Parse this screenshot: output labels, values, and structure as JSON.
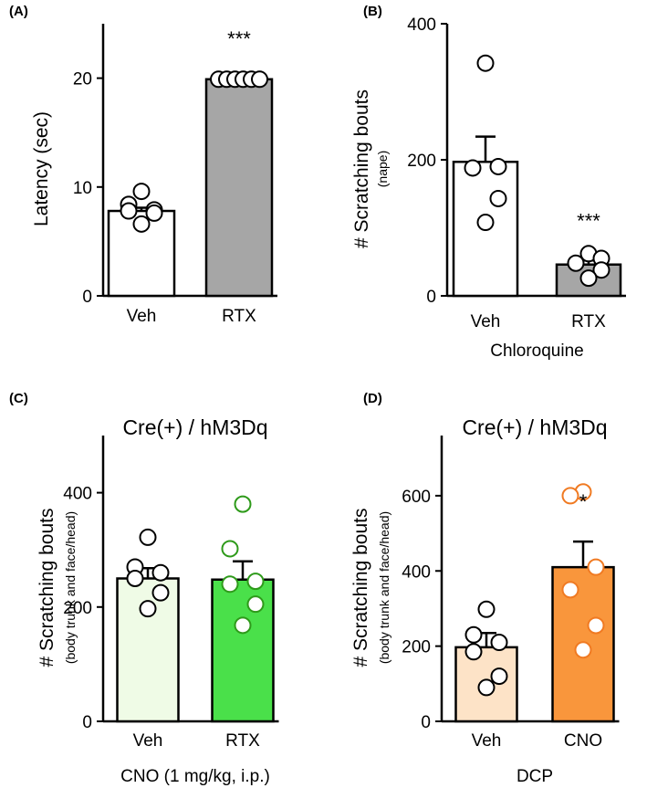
{
  "chart_data": [
    {
      "panel": "(A)",
      "type": "bar",
      "title": "",
      "ylabel": "Latency (sec)",
      "ylabel_sub": "",
      "xlabel": "",
      "ylim": [
        0,
        25
      ],
      "yticks": [
        0,
        10,
        20
      ],
      "categories": [
        "Veh",
        "RTX"
      ],
      "values": [
        7.8,
        19.9
      ],
      "errors": [
        0.3,
        0.05
      ],
      "bar_colors": [
        "#ffffff",
        "#a6a6a6"
      ],
      "point_colors": [
        "#000000",
        "#000000"
      ],
      "points": [
        [
          9.6,
          8.4,
          7.9,
          7.8,
          7.6,
          6.6
        ],
        [
          19.9,
          19.9,
          19.9,
          19.9,
          19.9,
          19.9
        ]
      ],
      "significance": [
        "",
        "***"
      ]
    },
    {
      "panel": "(B)",
      "type": "bar",
      "title": "",
      "ylabel": "# Scratching bouts",
      "ylabel_sub": "(nape)",
      "xlabel": "Chloroquine",
      "ylim": [
        0,
        400
      ],
      "yticks": [
        0,
        200,
        400
      ],
      "categories": [
        "Veh",
        "RTX"
      ],
      "values": [
        197,
        46
      ],
      "errors": [
        37,
        6
      ],
      "bar_colors": [
        "#ffffff",
        "#a6a6a6"
      ],
      "point_colors": [
        "#000000",
        "#000000"
      ],
      "points": [
        [
          342,
          190,
          188,
          143,
          108
        ],
        [
          62,
          55,
          48,
          38,
          26
        ]
      ],
      "significance": [
        "",
        "***"
      ]
    },
    {
      "panel": "(C)",
      "type": "bar",
      "title": "Cre(+) / hM3Dq",
      "ylabel": "# Scratching bouts",
      "ylabel_sub": "(body trunk and face/head)",
      "xlabel": "CNO (1 mg/kg, i.p.)",
      "ylim": [
        0,
        500
      ],
      "yticks": [
        0,
        200,
        400
      ],
      "categories": [
        "Veh",
        "RTX"
      ],
      "values": [
        250,
        248
      ],
      "errors": [
        18,
        32
      ],
      "bar_colors": [
        "#effbe6",
        "#4ae04a"
      ],
      "point_colors": [
        "#000000",
        "#2e9a1a"
      ],
      "points": [
        [
          322,
          270,
          260,
          250,
          225,
          197
        ],
        [
          380,
          302,
          245,
          240,
          205,
          168
        ]
      ],
      "significance": [
        "",
        ""
      ]
    },
    {
      "panel": "(D)",
      "type": "bar",
      "title": "Cre(+) / hM3Dq",
      "ylabel": "# Scratching bouts",
      "ylabel_sub": "(body trunk and face/head)",
      "xlabel": "DCP",
      "ylim": [
        0,
        760
      ],
      "yticks": [
        0,
        200,
        400,
        600
      ],
      "categories": [
        "Veh",
        "CNO"
      ],
      "values": [
        197,
        410
      ],
      "errors": [
        38,
        68
      ],
      "bar_colors": [
        "#fde3c7",
        "#f9963c"
      ],
      "point_colors": [
        "#000000",
        "#f07a22"
      ],
      "points": [
        [
          298,
          230,
          210,
          185,
          120,
          90
        ],
        [
          610,
          600,
          410,
          350,
          255,
          190
        ]
      ],
      "significance": [
        "",
        "*"
      ]
    }
  ]
}
